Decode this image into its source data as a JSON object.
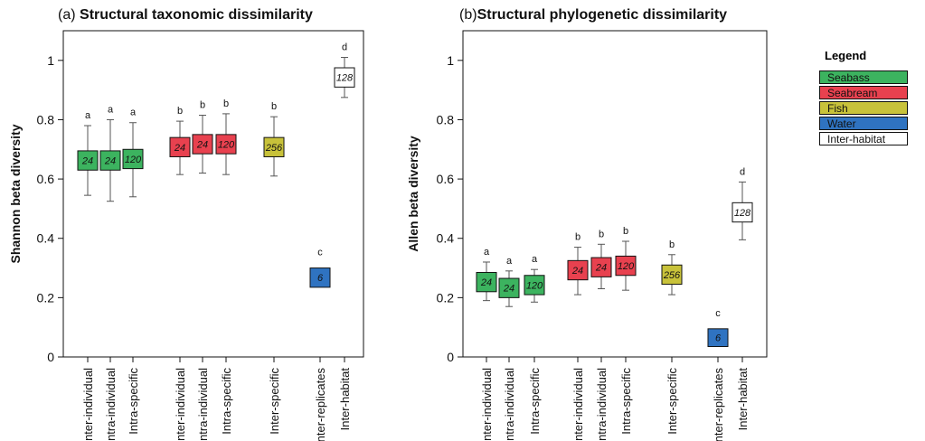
{
  "colors": {
    "Seabass": "#3cb35f",
    "Seabream": "#e8414f",
    "Fish": "#c8c23a",
    "Water": "#2f73c1",
    "Inter-habitat": "#ffffff"
  },
  "legend": {
    "title": "Legend",
    "items": [
      "Seabass",
      "Seabream",
      "Fish",
      "Water",
      "Inter-habitat"
    ]
  },
  "chart_data": [
    {
      "type": "box",
      "panel_label": "(a)",
      "title": "Structural taxonomic dissimilarity",
      "ylabel": "Shannon beta diversity",
      "ylim": [
        0,
        1.1
      ],
      "yticks": [
        0,
        0.2,
        0.4,
        0.6,
        0.8,
        1
      ],
      "grid": false,
      "categories": [
        "Inter-individual",
        "Intra-individual",
        "Intra-specific",
        "Inter-individual",
        "Intra-individual",
        "Intra-specific",
        "Inter-specific",
        "Inter-replicates",
        "Inter-habitat"
      ],
      "boxes": [
        {
          "category": "Inter-individual",
          "group": "Seabass",
          "n": "24",
          "whisker_low": 0.545,
          "q1": 0.63,
          "q3": 0.695,
          "whisker_high": 0.78,
          "letter": "a"
        },
        {
          "category": "Intra-individual",
          "group": "Seabass",
          "n": "24",
          "whisker_low": 0.525,
          "q1": 0.63,
          "q3": 0.695,
          "whisker_high": 0.8,
          "letter": "a"
        },
        {
          "category": "Intra-specific",
          "group": "Seabass",
          "n": "120",
          "whisker_low": 0.54,
          "q1": 0.635,
          "q3": 0.7,
          "whisker_high": 0.79,
          "letter": "a"
        },
        {
          "category": "Inter-individual",
          "group": "Seabream",
          "n": "24",
          "whisker_low": 0.615,
          "q1": 0.675,
          "q3": 0.74,
          "whisker_high": 0.795,
          "letter": "b"
        },
        {
          "category": "Intra-individual",
          "group": "Seabream",
          "n": "24",
          "whisker_low": 0.62,
          "q1": 0.685,
          "q3": 0.75,
          "whisker_high": 0.815,
          "letter": "b"
        },
        {
          "category": "Intra-specific",
          "group": "Seabream",
          "n": "120",
          "whisker_low": 0.615,
          "q1": 0.685,
          "q3": 0.75,
          "whisker_high": 0.82,
          "letter": "b"
        },
        {
          "category": "Inter-specific",
          "group": "Fish",
          "n": "256",
          "whisker_low": 0.61,
          "q1": 0.675,
          "q3": 0.74,
          "whisker_high": 0.81,
          "letter": "b"
        },
        {
          "category": "Inter-replicates",
          "group": "Water",
          "n": "6",
          "whisker_low": null,
          "q1": 0.235,
          "q3": 0.3,
          "whisker_high": null,
          "letter": "c"
        },
        {
          "category": "Inter-habitat",
          "group": "Inter-habitat",
          "n": "128",
          "whisker_low": 0.875,
          "q1": 0.91,
          "q3": 0.975,
          "whisker_high": 1.01,
          "letter": "d"
        }
      ]
    },
    {
      "type": "box",
      "panel_label": "(b)",
      "title": "Structural phylogenetic dissimilarity",
      "ylabel": "Allen beta diversity",
      "ylim": [
        0,
        1.1
      ],
      "yticks": [
        0,
        0.2,
        0.4,
        0.6,
        0.8,
        1
      ],
      "grid": false,
      "categories": [
        "Inter-individual",
        "Intra-individual",
        "Intra-specific",
        "Inter-individual",
        "Intra-individual",
        "Intra-specific",
        "Inter-specific",
        "Inter-replicates",
        "Inter-habitat"
      ],
      "boxes": [
        {
          "category": "Inter-individual",
          "group": "Seabass",
          "n": "24",
          "whisker_low": 0.19,
          "q1": 0.22,
          "q3": 0.285,
          "whisker_high": 0.32,
          "letter": "a"
        },
        {
          "category": "Intra-individual",
          "group": "Seabass",
          "n": "24",
          "whisker_low": 0.17,
          "q1": 0.2,
          "q3": 0.265,
          "whisker_high": 0.29,
          "letter": "a"
        },
        {
          "category": "Intra-specific",
          "group": "Seabass",
          "n": "120",
          "whisker_low": 0.185,
          "q1": 0.21,
          "q3": 0.275,
          "whisker_high": 0.295,
          "letter": "a"
        },
        {
          "category": "Inter-individual",
          "group": "Seabream",
          "n": "24",
          "whisker_low": 0.21,
          "q1": 0.26,
          "q3": 0.325,
          "whisker_high": 0.37,
          "letter": "b"
        },
        {
          "category": "Intra-individual",
          "group": "Seabream",
          "n": "24",
          "whisker_low": 0.23,
          "q1": 0.27,
          "q3": 0.335,
          "whisker_high": 0.38,
          "letter": "b"
        },
        {
          "category": "Intra-specific",
          "group": "Seabream",
          "n": "120",
          "whisker_low": 0.225,
          "q1": 0.275,
          "q3": 0.34,
          "whisker_high": 0.39,
          "letter": "b"
        },
        {
          "category": "Inter-specific",
          "group": "Fish",
          "n": "256",
          "whisker_low": 0.21,
          "q1": 0.245,
          "q3": 0.31,
          "whisker_high": 0.345,
          "letter": "b"
        },
        {
          "category": "Inter-replicates",
          "group": "Water",
          "n": "6",
          "whisker_low": null,
          "q1": 0.035,
          "q3": 0.095,
          "whisker_high": null,
          "letter": "c"
        },
        {
          "category": "Inter-habitat",
          "group": "Inter-habitat",
          "n": "128",
          "whisker_low": 0.395,
          "q1": 0.455,
          "q3": 0.52,
          "whisker_high": 0.59,
          "letter": "d"
        }
      ]
    }
  ]
}
